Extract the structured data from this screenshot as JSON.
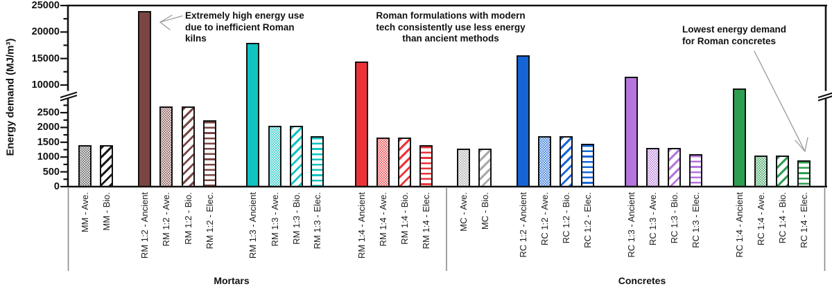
{
  "chart_data": {
    "type": "bar",
    "title": "",
    "ylabel": "Energy demand (MJ/m³)",
    "xlabel": "",
    "y_axis": {
      "broken": true,
      "lower_ticks": [
        0,
        500,
        1000,
        1500,
        2000,
        2500
      ],
      "lower_minor_ticks": [
        250,
        750,
        1250,
        1750,
        2250,
        2750
      ],
      "upper_ticks": [
        10000,
        15000,
        20000,
        25000
      ],
      "upper_minor_ticks": [
        12500,
        17500,
        22500
      ],
      "break_between": [
        2500,
        10000
      ],
      "ylim": [
        0,
        25000
      ]
    },
    "legend": "none",
    "grid": false,
    "section_labels": [
      "Mortars",
      "Concretes"
    ],
    "bars": [
      {
        "label": "MM - Ave.",
        "value": 1400,
        "color": "#4d4d4d",
        "pattern": "dots",
        "section": "Mortars"
      },
      {
        "label": "MM - Bio.",
        "value": 1400,
        "color": "#1a1a1a",
        "pattern": "diag",
        "section": "Mortars"
      },
      {
        "label": "RM 1:2 - Ancient",
        "value": 24000,
        "color": "#7a4543",
        "pattern": "solid",
        "section": "Mortars"
      },
      {
        "label": "RM 1:2 - Ave.",
        "value": 2700,
        "color": "#7a4543",
        "pattern": "dots",
        "section": "Mortars"
      },
      {
        "label": "RM 1:2 - Bio.",
        "value": 2700,
        "color": "#7a4543",
        "pattern": "diag",
        "section": "Mortars"
      },
      {
        "label": "RM 1:2 - Elec.",
        "value": 2250,
        "color": "#7a4543",
        "pattern": "hlines",
        "section": "Mortars"
      },
      {
        "label": "RM 1:3 - Ancient",
        "value": 17900,
        "color": "#10c3c0",
        "pattern": "solid",
        "section": "Mortars"
      },
      {
        "label": "RM 1:3 - Ave.",
        "value": 2050,
        "color": "#10c3c0",
        "pattern": "dots",
        "section": "Mortars"
      },
      {
        "label": "RM 1:3 - Bio.",
        "value": 2050,
        "color": "#10c3c0",
        "pattern": "diag",
        "section": "Mortars"
      },
      {
        "label": "RM 1:3 - Elec.",
        "value": 1700,
        "color": "#10c3c0",
        "pattern": "hlines",
        "section": "Mortars"
      },
      {
        "label": "RM 1:4 - Ancient",
        "value": 14400,
        "color": "#ed3237",
        "pattern": "solid",
        "section": "Mortars"
      },
      {
        "label": "RM 1:4 - Ave.",
        "value": 1650,
        "color": "#ed3237",
        "pattern": "dots",
        "section": "Mortars"
      },
      {
        "label": "RM 1:4 - Bio.",
        "value": 1650,
        "color": "#ed3237",
        "pattern": "diag",
        "section": "Mortars"
      },
      {
        "label": "RM 1:4 - Elec.",
        "value": 1400,
        "color": "#ed3237",
        "pattern": "hlines",
        "section": "Mortars"
      },
      {
        "label": "MC - Ave.",
        "value": 1280,
        "color": "#a8a8a8",
        "pattern": "dots",
        "section": "Concretes"
      },
      {
        "label": "MC - Bio.",
        "value": 1280,
        "color": "#a8a8a8",
        "pattern": "diag",
        "section": "Concretes"
      },
      {
        "label": "RC 1:2 - Ancient",
        "value": 15600,
        "color": "#1565d6",
        "pattern": "solid",
        "section": "Concretes"
      },
      {
        "label": "RC 1:2 - Ave.",
        "value": 1700,
        "color": "#1565d6",
        "pattern": "dots",
        "section": "Concretes"
      },
      {
        "label": "RC 1:2 - Bio.",
        "value": 1700,
        "color": "#1565d6",
        "pattern": "diag",
        "section": "Concretes"
      },
      {
        "label": "RC 1:2 - Elec.",
        "value": 1450,
        "color": "#1565d6",
        "pattern": "hlines",
        "section": "Concretes"
      },
      {
        "label": "RC 1:3 - Ancient",
        "value": 11600,
        "color": "#b476dc",
        "pattern": "solid",
        "section": "Concretes"
      },
      {
        "label": "RC 1:3 - Ave.",
        "value": 1300,
        "color": "#b476dc",
        "pattern": "dots",
        "section": "Concretes"
      },
      {
        "label": "RC 1:3 - Bio.",
        "value": 1300,
        "color": "#b476dc",
        "pattern": "diag",
        "section": "Concretes"
      },
      {
        "label": "RC 1:3 - Elec.",
        "value": 1100,
        "color": "#b476dc",
        "pattern": "hlines",
        "section": "Concretes"
      },
      {
        "label": "RC 1:4 - Ancient",
        "value": 9300,
        "color": "#2e9e52",
        "pattern": "solid",
        "section": "Concretes"
      },
      {
        "label": "RC 1:4 - Ave.",
        "value": 1050,
        "color": "#2e9e52",
        "pattern": "dots",
        "section": "Concretes"
      },
      {
        "label": "RC 1:4 - Bio.",
        "value": 1050,
        "color": "#2e9e52",
        "pattern": "diag",
        "section": "Concretes"
      },
      {
        "label": "RC 1:4 - Elec.",
        "value": 900,
        "color": "#2e9e52",
        "pattern": "hlines",
        "section": "Concretes"
      }
    ],
    "annotations": [
      {
        "text": "Extremely high energy use\ndue to inefficient Roman\nkilns",
        "points_to": "RM 1:2 - Ancient"
      },
      {
        "text": "Roman formulations with modern\ntech consistently use less energy\nthan ancient methods",
        "points_to": ""
      },
      {
        "text": "Lowest energy demand\nfor Roman concretes",
        "points_to": "RC 1:4 - Elec."
      }
    ]
  }
}
